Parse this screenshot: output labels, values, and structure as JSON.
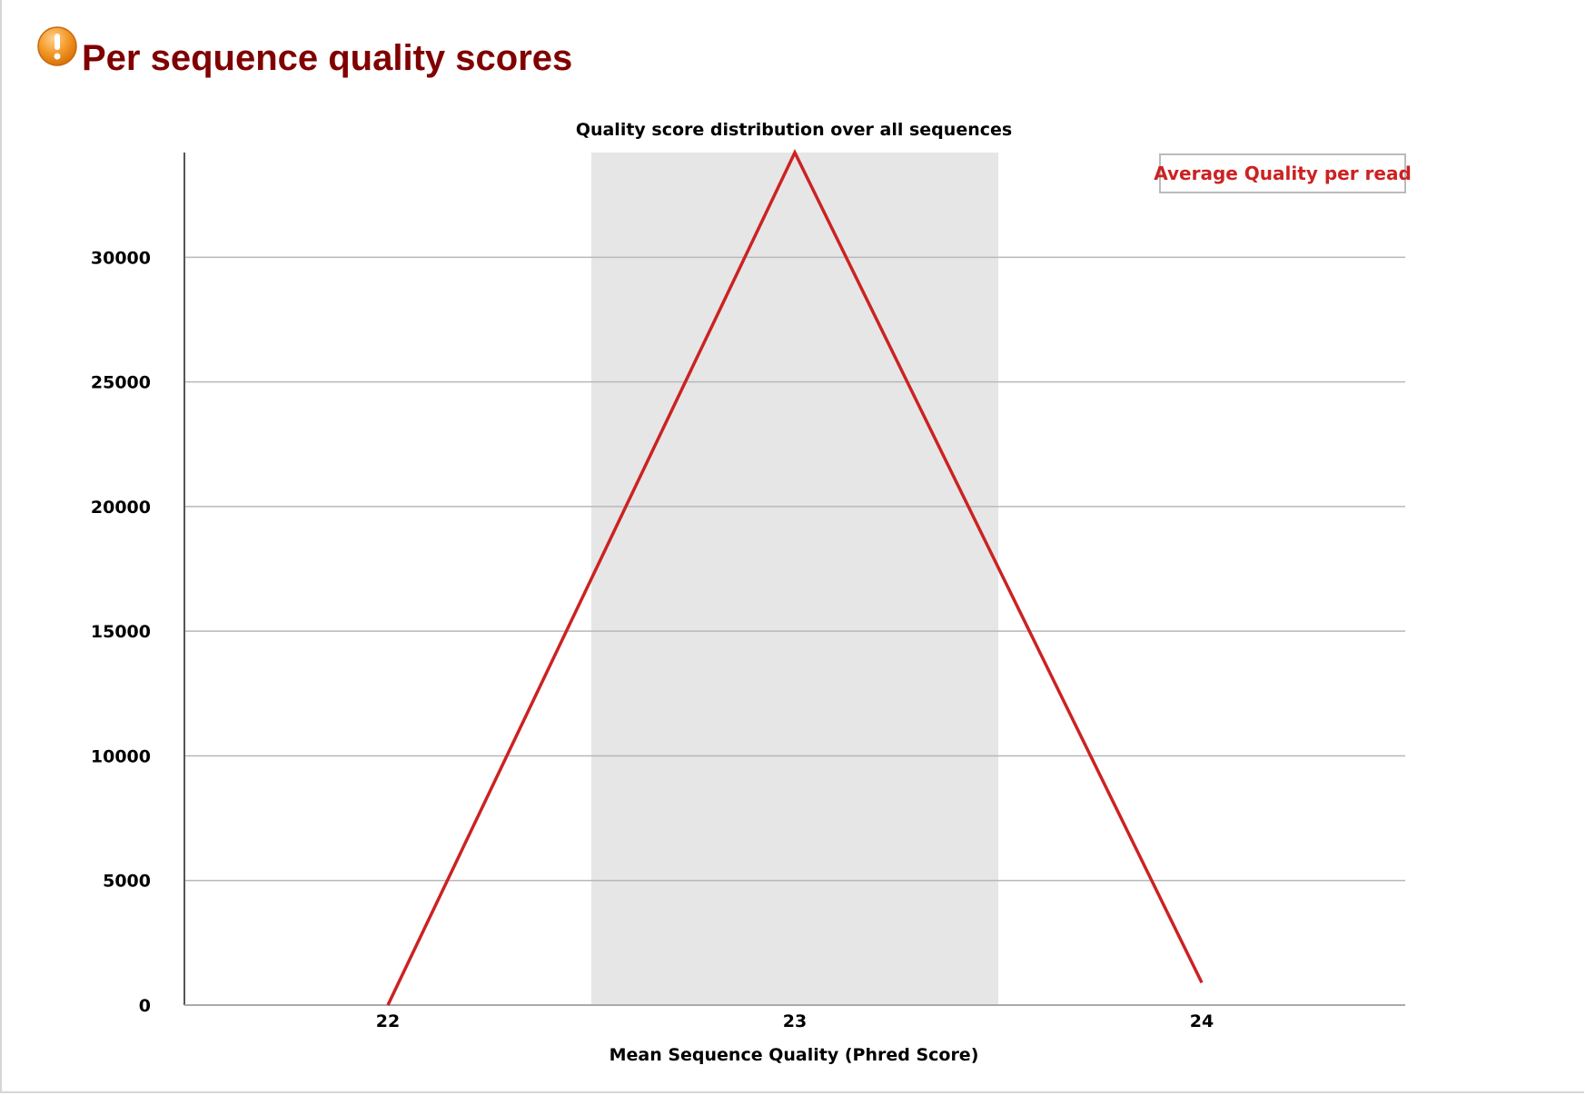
{
  "header": {
    "title": "Per sequence quality scores",
    "status_icon": "warning-icon",
    "status_color": "#f0901e"
  },
  "chart_data": {
    "type": "line",
    "title": "Quality score distribution over all sequences",
    "xlabel": "Mean Sequence Quality (Phred Score)",
    "ylabel": "",
    "x": [
      22,
      23,
      24
    ],
    "x_tick_labels": [
      "22",
      "23",
      "24"
    ],
    "xlim": [
      21.5,
      24.5
    ],
    "ylim": [
      0,
      34200
    ],
    "y_ticks": [
      0,
      5000,
      10000,
      15000,
      20000,
      25000,
      30000
    ],
    "y_tick_labels": [
      "0",
      "5000",
      "10000",
      "15000",
      "20000",
      "25000",
      "30000"
    ],
    "grid": true,
    "legend": "top-right",
    "shaded_band": [
      22.5,
      23.5
    ],
    "series": [
      {
        "name": "Average Quality per read",
        "color": "#cc2222",
        "values": [
          0,
          34200,
          900
        ]
      }
    ]
  }
}
